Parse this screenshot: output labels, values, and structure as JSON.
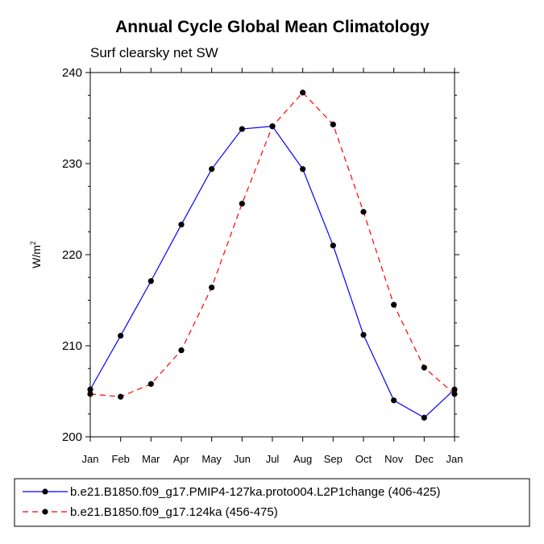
{
  "chart_data": {
    "type": "line",
    "title": "Annual Cycle Global Mean Climatology",
    "subtitle": "Surf clearsky net SW",
    "xlabel": "",
    "ylabel": "W/m",
    "ylabel_superscript": "2",
    "categories": [
      "Jan",
      "Feb",
      "Mar",
      "Apr",
      "May",
      "Jun",
      "Jul",
      "Aug",
      "Sep",
      "Oct",
      "Nov",
      "Dec",
      "Jan"
    ],
    "ylim": [
      200,
      240
    ],
    "yticks": [
      200,
      210,
      220,
      230,
      240
    ],
    "grid": false,
    "legend_position": "bottom",
    "series": [
      {
        "name": "b.e21.B1850.f09_g17.PMIP4-127ka.proto004.L2P1change (406-425)",
        "color": "#0000ff",
        "dash": "solid",
        "values": [
          205.2,
          211.1,
          217.1,
          223.3,
          229.4,
          233.8,
          234.1,
          229.4,
          221.0,
          211.2,
          204.0,
          202.1,
          205.2
        ]
      },
      {
        "name": "b.e21.B1850.f09_g17.124ka (456-475)",
        "color": "#ff0000",
        "dash": "dashed",
        "values": [
          204.7,
          204.4,
          205.8,
          209.5,
          216.4,
          225.6,
          234.1,
          237.8,
          234.3,
          224.7,
          214.5,
          207.6,
          204.7
        ]
      }
    ]
  }
}
